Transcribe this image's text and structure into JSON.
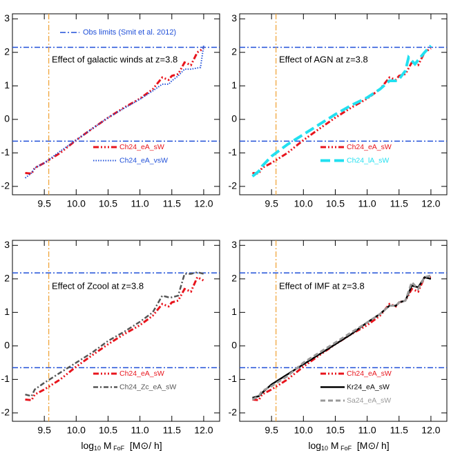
{
  "chart_data": [
    {
      "type": "line",
      "annotation": "Effect of galactic winds at z=3.8",
      "xlim": [
        9.0,
        12.25
      ],
      "ylim": [
        -2.25,
        3.15
      ],
      "xticks": [
        9.5,
        {
          "value": 10,
          "label": "10.0"
        },
        10.5,
        {
          "value": 11,
          "label": "11.0"
        },
        11.5,
        {
          "value": 12,
          "label": "12.0"
        }
      ],
      "yticks": [
        -2,
        -1,
        0,
        1,
        2,
        3
      ],
      "hlines": [
        2.15,
        -0.65
      ],
      "hline_color": "#1f4fd8",
      "hline_label": "Obs limits (Smit et al. 2012)",
      "vline": 9.57,
      "vline_color": "#f0a030",
      "series": [
        {
          "name": "Ch24_eA_sW",
          "color": "#e8141c",
          "style": "dash-dot-dot",
          "x": [
            9.2,
            9.3,
            9.35,
            9.5,
            9.75,
            10.0,
            10.25,
            10.5,
            10.75,
            11.0,
            11.2,
            11.35,
            11.45,
            11.5,
            11.6,
            11.7,
            11.8,
            11.9,
            12.0
          ],
          "values": [
            -1.6,
            -1.62,
            -1.45,
            -1.3,
            -1.0,
            -0.62,
            -0.28,
            0.05,
            0.35,
            0.62,
            0.9,
            1.25,
            1.18,
            1.3,
            1.35,
            1.7,
            1.62,
            2.0,
            2.12
          ]
        },
        {
          "name": "Ch24_eA_vsW",
          "color": "#1f4fd8",
          "style": "dotted",
          "x": [
            9.2,
            9.3,
            9.35,
            9.5,
            9.75,
            10.0,
            10.25,
            10.5,
            10.75,
            11.0,
            11.2,
            11.35,
            11.45,
            11.5,
            11.6,
            11.7,
            11.8,
            11.95,
            12.0
          ],
          "values": [
            -1.75,
            -1.6,
            -1.45,
            -1.3,
            -0.95,
            -0.62,
            -0.28,
            0.05,
            0.33,
            0.6,
            0.85,
            1.05,
            1.05,
            1.15,
            1.3,
            1.5,
            1.5,
            1.55,
            2.2
          ]
        }
      ]
    },
    {
      "type": "line",
      "annotation": "Effect of AGN at z=3.8",
      "xlim": [
        9.0,
        12.25
      ],
      "ylim": [
        -2.25,
        3.15
      ],
      "xticks": [
        9.5,
        {
          "value": 10,
          "label": "10.0"
        },
        10.5,
        {
          "value": 11,
          "label": "11.0"
        },
        11.5,
        {
          "value": 12,
          "label": "12.0"
        }
      ],
      "yticks": [
        -2,
        -1,
        0,
        1,
        2,
        3
      ],
      "hlines": [
        2.15,
        -0.65
      ],
      "hline_color": "#1f4fd8",
      "vline": 9.57,
      "vline_color": "#f0a030",
      "series": [
        {
          "name": "Ch24_eA_sW",
          "color": "#e8141c",
          "style": "dash-dot-dot",
          "x": [
            9.2,
            9.3,
            9.35,
            9.5,
            9.75,
            10.0,
            10.25,
            10.5,
            10.75,
            11.0,
            11.2,
            11.35,
            11.45,
            11.5,
            11.6,
            11.7,
            11.8,
            11.9,
            12.0
          ],
          "values": [
            -1.6,
            -1.62,
            -1.45,
            -1.3,
            -1.0,
            -0.62,
            -0.28,
            0.05,
            0.35,
            0.62,
            0.9,
            1.25,
            1.18,
            1.3,
            1.35,
            1.7,
            1.62,
            2.0,
            2.12
          ]
        },
        {
          "name": "Ch24_lA_sW",
          "color": "#22e0f0",
          "style": "long-dash",
          "x": [
            9.2,
            9.3,
            9.35,
            9.5,
            9.75,
            10.0,
            10.25,
            10.5,
            10.75,
            11.0,
            11.2,
            11.35,
            11.45,
            11.5,
            11.6,
            11.65,
            11.75,
            11.9,
            12.0
          ],
          "values": [
            -1.7,
            -1.55,
            -1.4,
            -1.1,
            -0.75,
            -0.45,
            -0.15,
            0.15,
            0.42,
            0.65,
            0.9,
            1.15,
            1.15,
            1.2,
            1.45,
            1.85,
            1.65,
            2.0,
            2.2
          ]
        }
      ]
    },
    {
      "type": "line",
      "annotation": "Effect of Zcool at z=3.8",
      "x_label": [
        "log",
        "10",
        " M",
        " FoF",
        "  [M",
        "⊙",
        "/ h]"
      ],
      "xlim": [
        9.0,
        12.25
      ],
      "ylim": [
        -2.25,
        3.15
      ],
      "xticks": [
        9.5,
        {
          "value": 10,
          "label": "10.0"
        },
        10.5,
        {
          "value": 11,
          "label": "11.0"
        },
        11.5,
        {
          "value": 12,
          "label": "12.0"
        }
      ],
      "yticks": [
        -2,
        -1,
        0,
        1,
        2,
        3
      ],
      "hlines": [
        2.18,
        -0.65
      ],
      "hline_color": "#1f4fd8",
      "vline": 9.57,
      "vline_color": "#f0a030",
      "series": [
        {
          "name": "Ch24_eA_sW",
          "color": "#e8141c",
          "style": "dash-dot-dot",
          "x": [
            9.2,
            9.3,
            9.35,
            9.5,
            9.75,
            10.0,
            10.25,
            10.5,
            10.75,
            11.0,
            11.2,
            11.35,
            11.45,
            11.5,
            11.6,
            11.7,
            11.8,
            11.9,
            12.0
          ],
          "values": [
            -1.6,
            -1.62,
            -1.45,
            -1.3,
            -1.0,
            -0.62,
            -0.28,
            0.05,
            0.35,
            0.62,
            0.9,
            1.25,
            1.18,
            1.3,
            1.35,
            1.7,
            1.62,
            2.05,
            1.95
          ]
        },
        {
          "name": "Ch24_Zc_eA_sW",
          "color": "#555555",
          "style": "dash-dot",
          "x": [
            9.2,
            9.3,
            9.35,
            9.5,
            9.75,
            10.0,
            10.25,
            10.5,
            10.75,
            11.0,
            11.2,
            11.35,
            11.45,
            11.5,
            11.6,
            11.7,
            11.8,
            11.9,
            12.0
          ],
          "values": [
            -1.45,
            -1.5,
            -1.3,
            -1.1,
            -0.8,
            -0.5,
            -0.2,
            0.15,
            0.42,
            0.72,
            1.0,
            1.5,
            1.45,
            1.45,
            1.5,
            2.15,
            2.15,
            2.2,
            2.15
          ]
        }
      ]
    },
    {
      "type": "line",
      "annotation": "Effect of IMF at z=3.8",
      "x_label": [
        "log",
        "10",
        " M",
        " FoF",
        "  [M",
        "⊙",
        "/ h]"
      ],
      "xlim": [
        9.0,
        12.25
      ],
      "ylim": [
        -2.25,
        3.15
      ],
      "xticks": [
        9.5,
        {
          "value": 10,
          "label": "10.0"
        },
        10.5,
        {
          "value": 11,
          "label": "11.0"
        },
        11.5,
        {
          "value": 12,
          "label": "12.0"
        }
      ],
      "yticks": [
        -2,
        -1,
        0,
        1,
        2,
        3
      ],
      "hlines": [
        2.18,
        -0.65
      ],
      "hline_color": "#1f4fd8",
      "vline": 9.57,
      "vline_color": "#f0a030",
      "series": [
        {
          "name": "Ch24_eA_sW",
          "color": "#e8141c",
          "style": "dash-dot-dot",
          "x": [
            9.2,
            9.3,
            9.35,
            9.5,
            9.75,
            10.0,
            10.25,
            10.5,
            10.75,
            11.0,
            11.2,
            11.35,
            11.45,
            11.5,
            11.6,
            11.7,
            11.8,
            11.9,
            12.0
          ],
          "values": [
            -1.6,
            -1.62,
            -1.45,
            -1.3,
            -1.0,
            -0.62,
            -0.28,
            0.05,
            0.35,
            0.62,
            0.9,
            1.25,
            1.18,
            1.3,
            1.35,
            1.7,
            1.62,
            2.05,
            2.05
          ]
        },
        {
          "name": "Kr24_eA_sW",
          "color": "#000000",
          "style": "solid",
          "x": [
            9.2,
            9.3,
            9.35,
            9.5,
            9.75,
            10.0,
            10.25,
            10.5,
            10.75,
            11.0,
            11.2,
            11.35,
            11.45,
            11.5,
            11.6,
            11.7,
            11.8,
            11.9,
            12.0
          ],
          "values": [
            -1.55,
            -1.5,
            -1.4,
            -1.15,
            -0.85,
            -0.55,
            -0.25,
            0.05,
            0.35,
            0.7,
            0.95,
            1.2,
            1.2,
            1.3,
            1.35,
            1.8,
            1.75,
            2.05,
            2.0
          ]
        },
        {
          "name": "Sa24_eA_sW",
          "color": "#999999",
          "style": "dash",
          "x": [
            9.2,
            9.3,
            9.35,
            9.5,
            9.75,
            10.0,
            10.25,
            10.5,
            10.75,
            11.0,
            11.2,
            11.35,
            11.45,
            11.5,
            11.6,
            11.7,
            11.8,
            11.9,
            12.0
          ],
          "values": [
            -1.6,
            -1.5,
            -1.35,
            -1.2,
            -0.9,
            -0.5,
            -0.2,
            0.1,
            0.4,
            0.7,
            0.95,
            1.2,
            1.2,
            1.3,
            1.35,
            1.9,
            1.7,
            2.05,
            2.1
          ]
        }
      ]
    }
  ]
}
